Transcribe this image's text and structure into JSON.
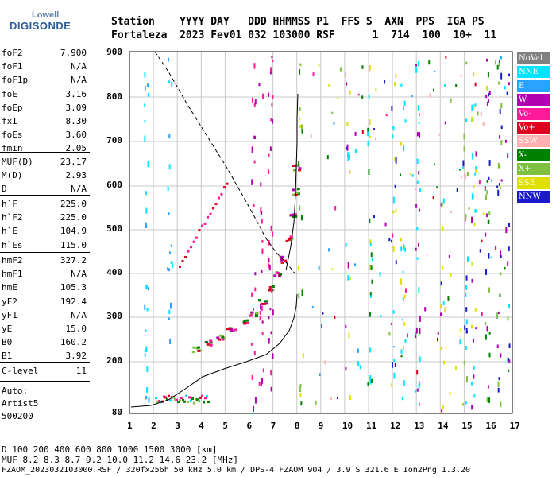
{
  "logo": {
    "top": "Lowell",
    "bottom": "DIGISONDE"
  },
  "header": {
    "line1": "Station    YYYY DAY   DDD HHMMSS P1  FFS S  AXN  PPS  IGA PS",
    "line2": "Fortaleza  2023 Fev01 032 103000 RSF      1  714  100  10+  11"
  },
  "params_group1": [
    {
      "name": "foF2",
      "value": "7.900"
    },
    {
      "name": "foF1",
      "value": "N/A"
    },
    {
      "name": "foF1p",
      "value": "N/A"
    },
    {
      "name": "foE",
      "value": "3.16"
    },
    {
      "name": "foEp",
      "value": "3.09"
    },
    {
      "name": "fxI",
      "value": "8.30"
    },
    {
      "name": "foEs",
      "value": "3.60"
    },
    {
      "name": "fmin",
      "value": "2.05"
    }
  ],
  "params_group2": [
    {
      "name": "MUF(D)",
      "value": "23.17"
    },
    {
      "name": "M(D)",
      "value": "2.93"
    },
    {
      "name": "D",
      "value": "N/A"
    }
  ],
  "params_group3": [
    {
      "name": "h`F",
      "value": "225.0"
    },
    {
      "name": "h`F2",
      "value": "225.0"
    },
    {
      "name": "h`E",
      "value": "104.9"
    },
    {
      "name": "h`Es",
      "value": "115.0"
    }
  ],
  "params_group4": [
    {
      "name": "hmF2",
      "value": "327.2"
    },
    {
      "name": "hmF1",
      "value": "N/A"
    },
    {
      "name": "hmE",
      "value": "105.3"
    },
    {
      "name": "yF2",
      "value": "192.4"
    },
    {
      "name": "yF1",
      "value": "N/A"
    },
    {
      "name": "yE",
      "value": "15.0"
    },
    {
      "name": "B0",
      "value": "160.2"
    },
    {
      "name": "B1",
      "value": "3.92"
    }
  ],
  "params_group5": [
    {
      "name": "C-level",
      "value": "11"
    }
  ],
  "auto": {
    "line1": "Auto:",
    "line2": "Artist5",
    "line3": "500200"
  },
  "legend": [
    {
      "label": "NoVal",
      "color": "#808080"
    },
    {
      "label": "NNE",
      "color": "#00e5ff"
    },
    {
      "label": "E",
      "color": "#29a3ff"
    },
    {
      "label": "W",
      "color": "#b000b0"
    },
    {
      "label": "Vo-",
      "color": "#ff1a9c"
    },
    {
      "label": "Vo+",
      "color": "#e00020"
    },
    {
      "label": "SSW",
      "color": "#ffb0b0"
    },
    {
      "label": "X-",
      "color": "#008000"
    },
    {
      "label": "X+",
      "color": "#7fc040"
    },
    {
      "label": "SSE",
      "color": "#e0e000"
    },
    {
      "label": "NNW",
      "color": "#1a1acc"
    }
  ],
  "axes": {
    "x_ticks": [
      "1",
      "2",
      "3",
      "4",
      "5",
      "6",
      "7",
      "8",
      "9",
      "10",
      "11",
      "12",
      "13",
      "14",
      "15",
      "16",
      "17"
    ],
    "y_ticks": [
      "80",
      "200",
      "300",
      "400",
      "500",
      "600",
      "700",
      "800",
      "900"
    ]
  },
  "footer": {
    "d_row": "D     100  200  400  600  800 1000 1500 3000 [km]",
    "muf_row": "MUF   8.2  8.3  8.7  9.2 10.0 11.2 14.6 23.2 [MHz]",
    "info": "FZAOM_2023032103000.RSF / 320fx256h 50 kHz 5.0 km / DPS-4 FZAOM 904 / 3.9 S 321.6 E   Ion2Png 1.3.20"
  }
}
